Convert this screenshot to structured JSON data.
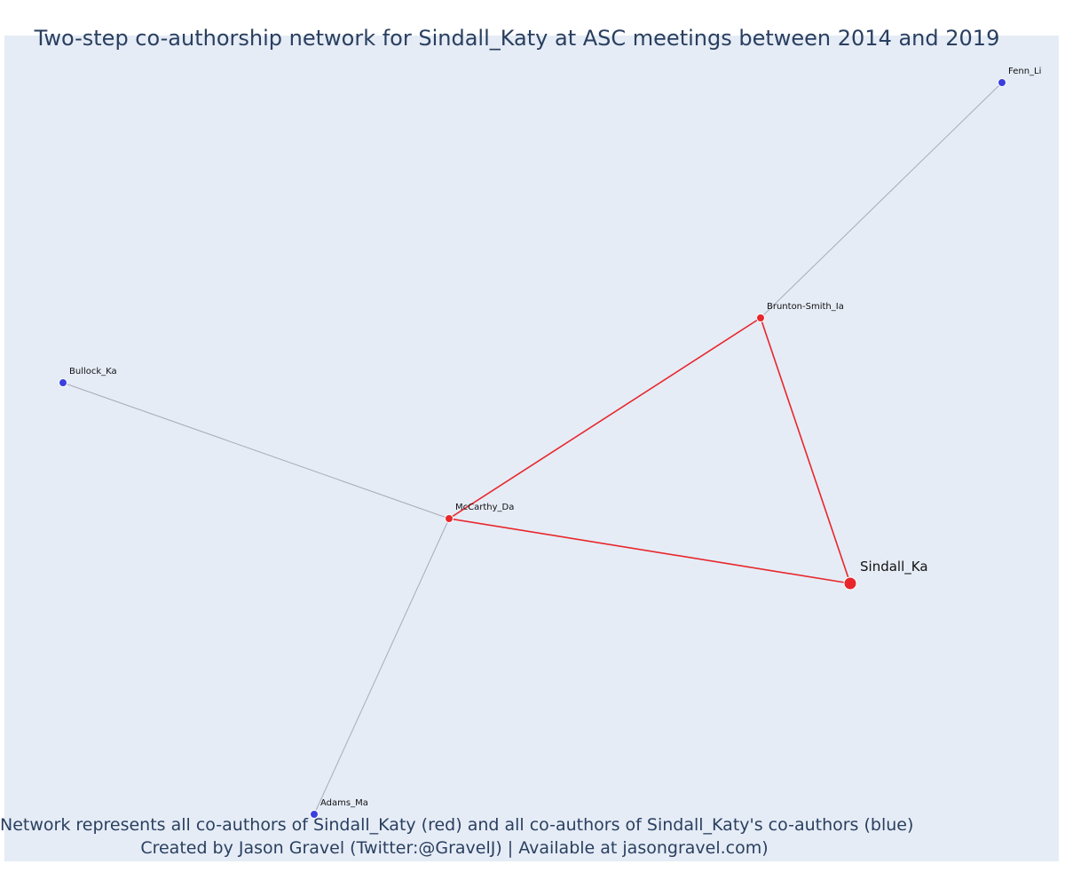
{
  "title": "Two-step co-authorship network for Sindall_Katy at ASC meetings between 2014 and 2019",
  "footer": {
    "line1": "Network represents all co-authors of Sindall_Katy (red) and all co-authors of Sindall_Katy's co-authors (blue)",
    "line2": "Created by Jason Gravel (Twitter:@GravelJ) | Available at jasongravel.com)"
  },
  "colors": {
    "background": "#e5ecf6",
    "first_degree": "#e8262b",
    "second_degree": "#3a3fe0",
    "red_edge": "#e8262b",
    "grey_edge": "#aaaab8"
  },
  "network": {
    "focal": "Sindall_Ka",
    "nodes": [
      {
        "id": "Sindall_Ka",
        "label": "Sindall_Ka",
        "group": "focal"
      },
      {
        "id": "Brunton-Smith_Ia",
        "label": "Brunton-Smith_Ia",
        "group": "coauthor"
      },
      {
        "id": "McCarthy_Da",
        "label": "McCarthy_Da",
        "group": "coauthor"
      },
      {
        "id": "Fenn_Li",
        "label": "Fenn_Li",
        "group": "second"
      },
      {
        "id": "Bullock_Ka",
        "label": "Bullock_Ka",
        "group": "second"
      },
      {
        "id": "Adams_Ma",
        "label": "Adams_Ma",
        "group": "second"
      }
    ],
    "edges": [
      {
        "source": "Sindall_Ka",
        "target": "Brunton-Smith_Ia",
        "type": "direct"
      },
      {
        "source": "Sindall_Ka",
        "target": "McCarthy_Da",
        "type": "direct"
      },
      {
        "source": "Brunton-Smith_Ia",
        "target": "McCarthy_Da",
        "type": "direct"
      },
      {
        "source": "Brunton-Smith_Ia",
        "target": "Fenn_Li",
        "type": "indirect"
      },
      {
        "source": "McCarthy_Da",
        "target": "Bullock_Ka",
        "type": "indirect"
      },
      {
        "source": "McCarthy_Da",
        "target": "Adams_Ma",
        "type": "indirect"
      }
    ]
  }
}
